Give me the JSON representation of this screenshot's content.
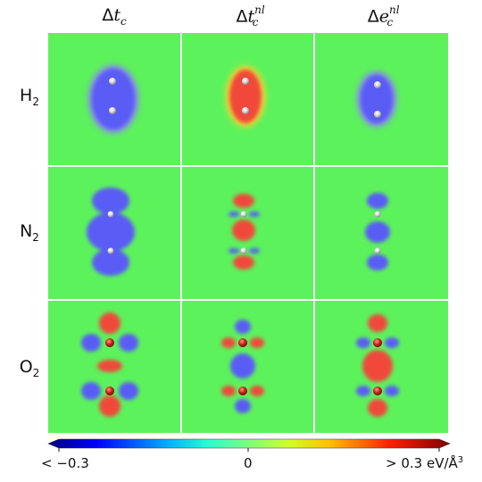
{
  "figure": {
    "columns": [
      {
        "prefix": "Δ",
        "var": "t",
        "sub": "c",
        "sup": ""
      },
      {
        "prefix": "Δ",
        "var": "t",
        "sub": "c",
        "sup": "nl"
      },
      {
        "prefix": "Δ",
        "var": "e",
        "sub": "c",
        "sup": "nl"
      }
    ],
    "rows": [
      {
        "base": "H",
        "sub": "2"
      },
      {
        "base": "N",
        "sub": "2"
      },
      {
        "base": "O",
        "sub": "2"
      }
    ],
    "colorbar": {
      "min_label": "< −0.3",
      "mid_label": "0",
      "max_label": "> 0.3 eV/Å",
      "max_label_sup": "3",
      "min": -0.3,
      "max": 0.3
    },
    "colors": {
      "background_zero": "#5cf25c",
      "negative": "#5a5cf6",
      "positive": "#f04a3a",
      "atom": "#c81818"
    }
  }
}
